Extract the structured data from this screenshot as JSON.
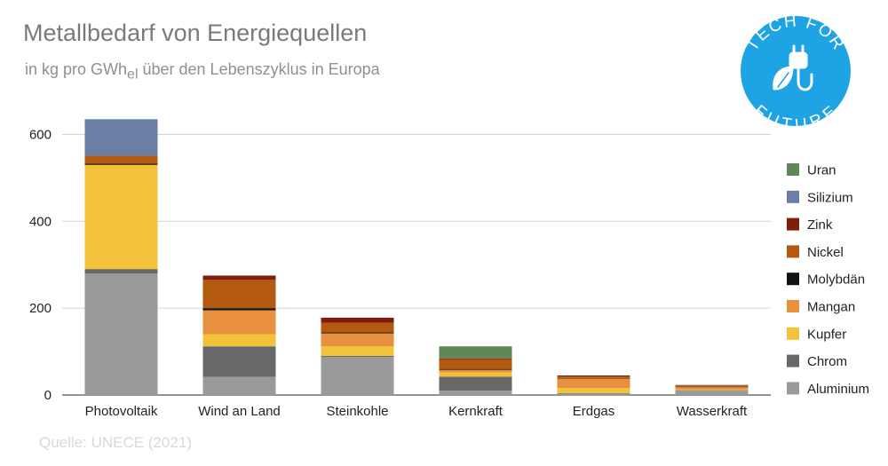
{
  "header": {
    "title": "Metallbedarf von Energiequellen",
    "subtitle_main": "in kg pro GWh",
    "subtitle_sub": "el",
    "subtitle_rest": " über den Lebenszyklus in Europa"
  },
  "source": "Quelle: UNECE (2021)",
  "logo": {
    "text_top": "TECH FOR",
    "text_bottom": "FUTURE",
    "color": "#1ea3e5",
    "icon": "plug-leaf-icon"
  },
  "chart_data": {
    "type": "bar",
    "stacked": true,
    "categories": [
      "Photovoltaik",
      "Wind an Land",
      "Steinkohle",
      "Kernkraft",
      "Erdgas",
      "Wasserkraft"
    ],
    "ylim": [
      0,
      650
    ],
    "yticks": [
      0,
      200,
      400,
      600
    ],
    "grid": true,
    "legend_position": "right",
    "series": [
      {
        "name": "Aluminium",
        "color": "#9a9a9a",
        "values": [
          280,
          42,
          88,
          10,
          3,
          10
        ]
      },
      {
        "name": "Chrom",
        "color": "#686868",
        "values": [
          10,
          70,
          2,
          32,
          1,
          1
        ]
      },
      {
        "name": "Kupfer",
        "color": "#f2c23a",
        "values": [
          240,
          28,
          22,
          10,
          12,
          2
        ]
      },
      {
        "name": "Mangan",
        "color": "#e8903e",
        "values": [
          0,
          55,
          30,
          6,
          22,
          5
        ]
      },
      {
        "name": "Molybdän",
        "color": "#111111",
        "values": [
          3,
          5,
          2,
          2,
          1,
          1
        ]
      },
      {
        "name": "Nickel",
        "color": "#b35a10",
        "values": [
          18,
          65,
          22,
          22,
          4,
          3
        ]
      },
      {
        "name": "Zink",
        "color": "#7f1d0c",
        "values": [
          0,
          10,
          12,
          2,
          2,
          1
        ]
      },
      {
        "name": "Silizium",
        "color": "#6b7fa6",
        "values": [
          84,
          0,
          0,
          0,
          0,
          0
        ]
      },
      {
        "name": "Uran",
        "color": "#5f8757",
        "values": [
          0,
          0,
          0,
          28,
          0,
          0
        ]
      }
    ]
  }
}
